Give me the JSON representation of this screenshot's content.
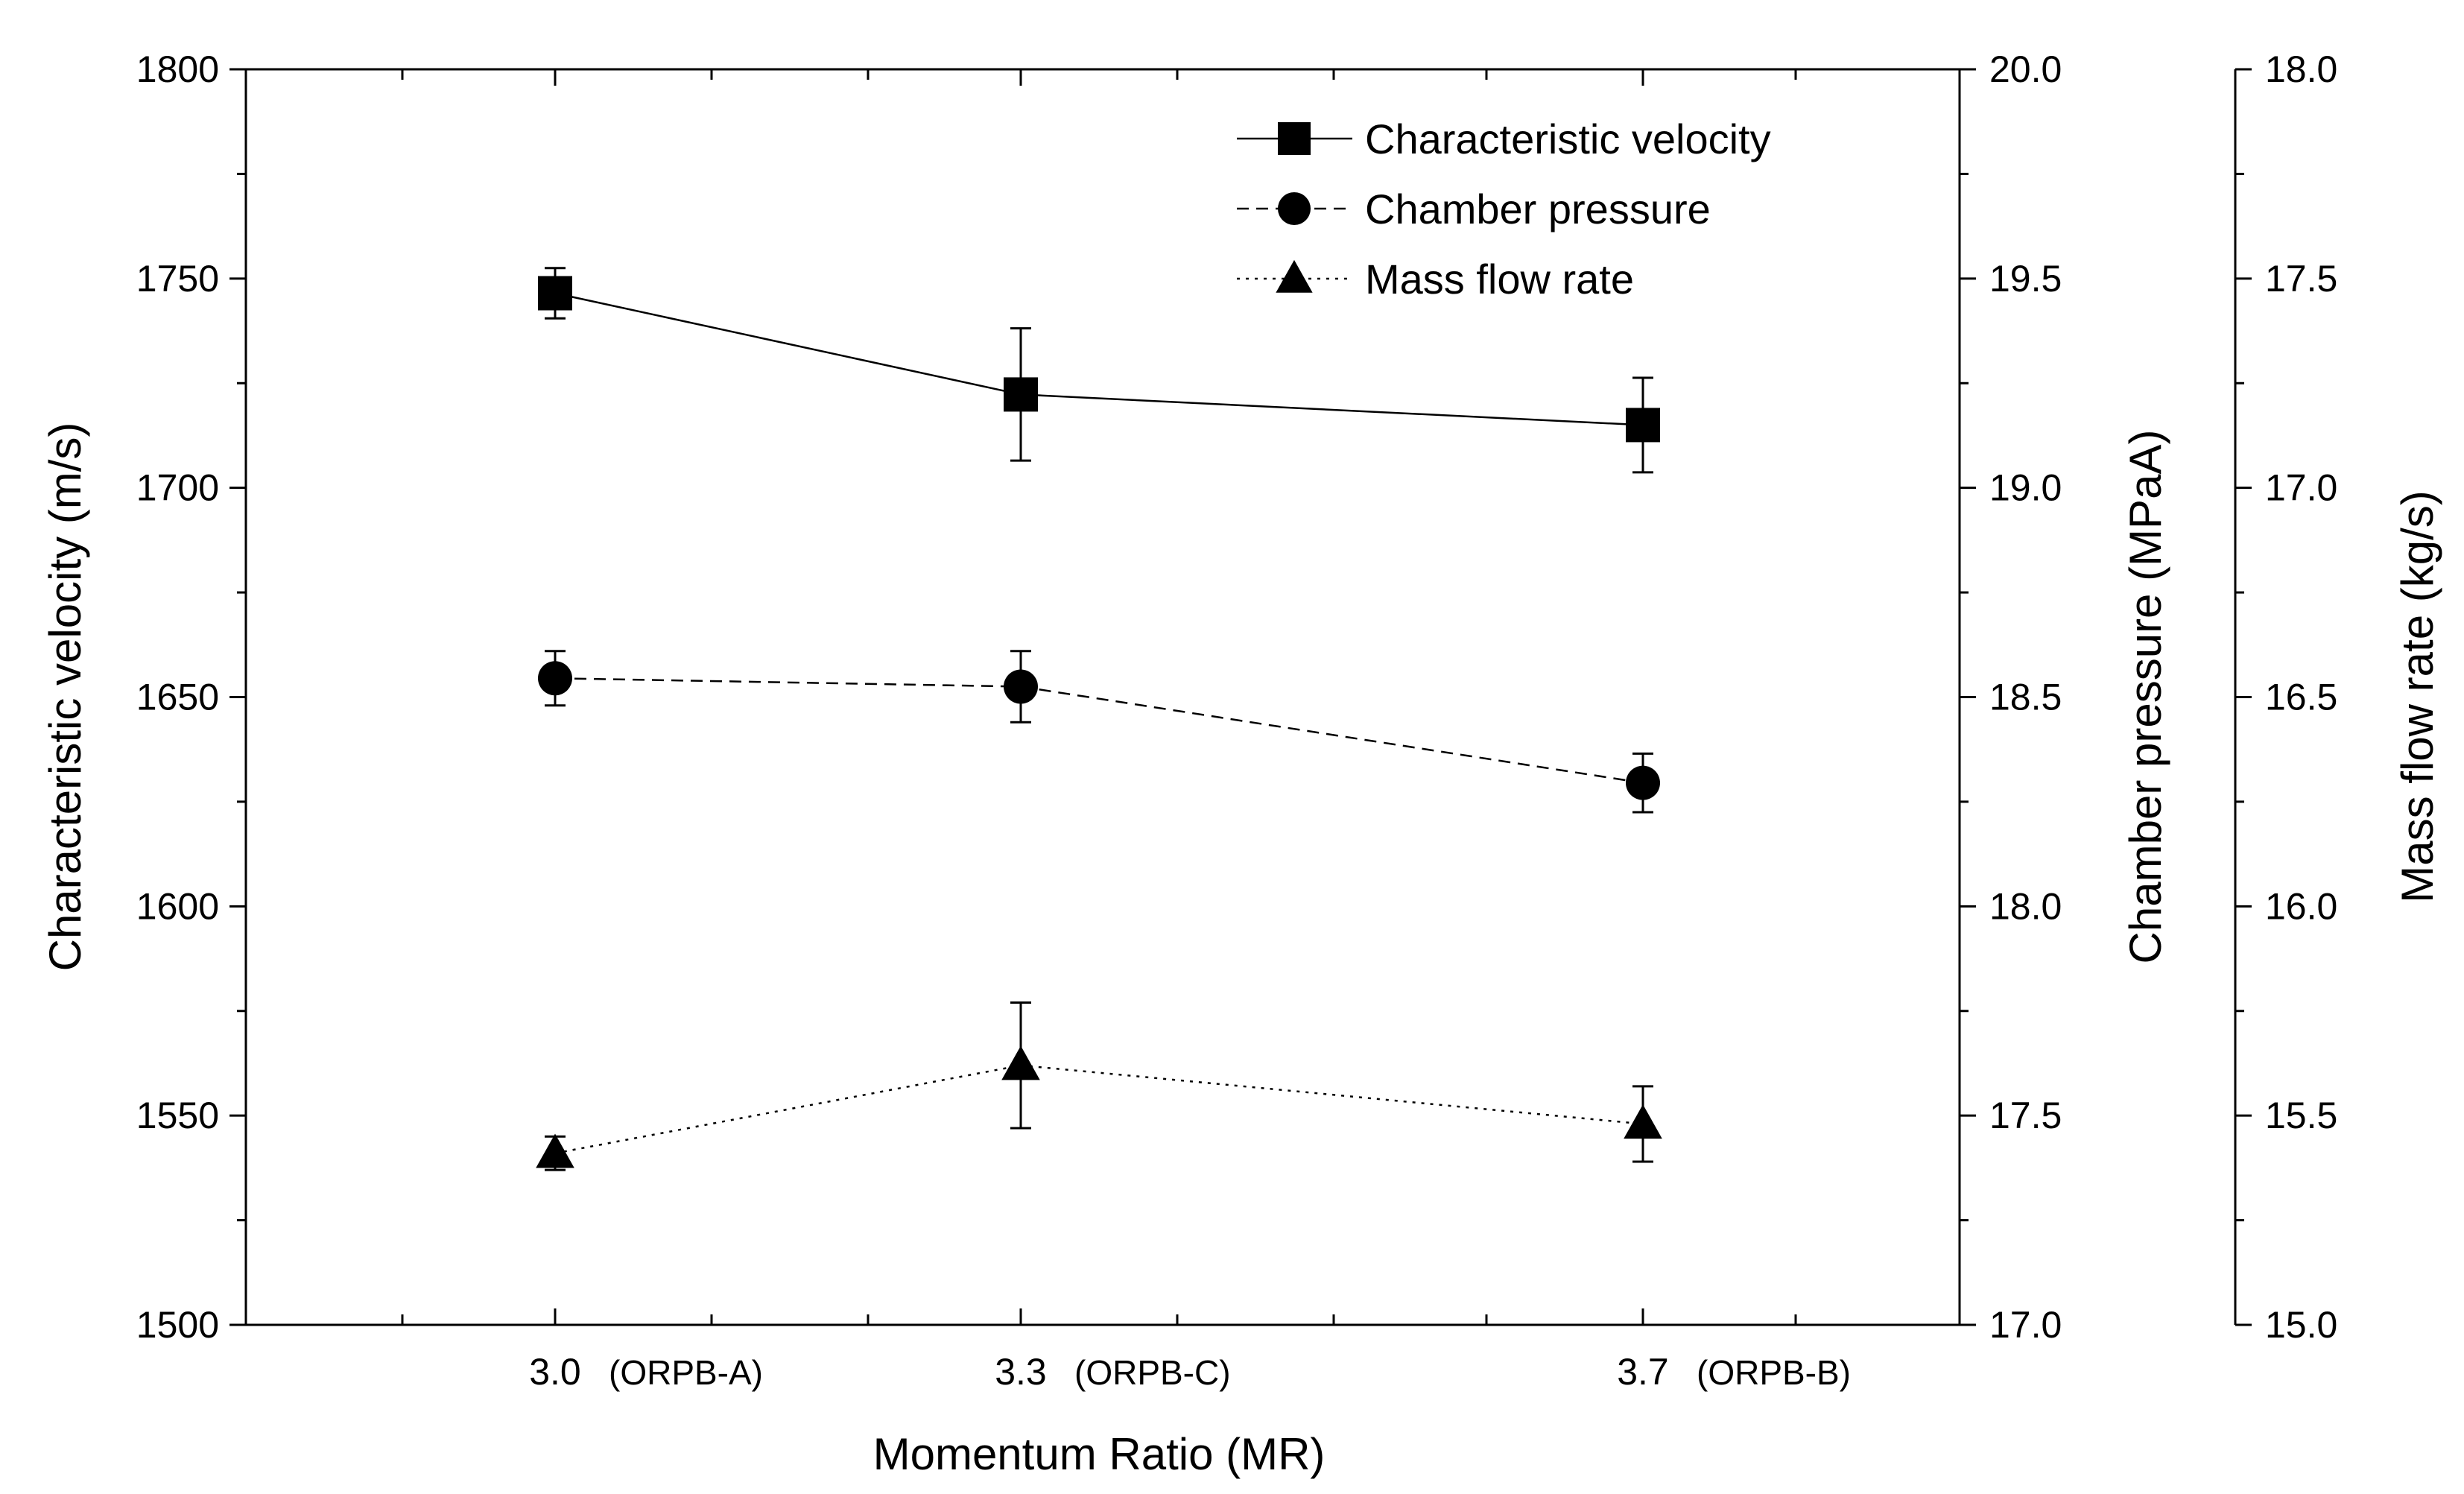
{
  "chart_data": {
    "type": "line",
    "xlabel": "Momentum Ratio (MR)",
    "categories": [
      {
        "value": "3.0",
        "label": "(ORPB-A)"
      },
      {
        "value": "3.3",
        "label": "(ORPB-C)"
      },
      {
        "value": "3.7",
        "label": "(ORPB-B)"
      }
    ],
    "axes": {
      "left": {
        "label": "Characteristic velocity (m/s)",
        "ylim": [
          1500,
          1800
        ],
        "ticks": [
          "1500",
          "1550",
          "1600",
          "1650",
          "1700",
          "1750",
          "1800"
        ]
      },
      "right1": {
        "label": "Chamber pressure (MPaA)",
        "ylim": [
          17.0,
          20.0
        ],
        "ticks": [
          "17.0",
          "17.5",
          "18.0",
          "18.5",
          "19.0",
          "19.5",
          "20.0"
        ]
      },
      "right2": {
        "label": "Mass flow rate (kg/s)",
        "ylim": [
          15.0,
          18.0
        ],
        "ticks": [
          "15.0",
          "15.5",
          "16.0",
          "16.5",
          "17.0",
          "17.5",
          "18.0"
        ]
      }
    },
    "series": [
      {
        "name": "Characteristic velocity",
        "axis": "left",
        "marker": "square",
        "line": "solid",
        "values": [
          1746.5,
          1722.3,
          1715.0
        ],
        "error": [
          6.0,
          15.8,
          11.3
        ]
      },
      {
        "name": "Chamber pressure",
        "axis": "right1",
        "marker": "circle",
        "line": "dashed",
        "values": [
          18.545,
          18.525,
          18.295
        ],
        "error": [
          0.065,
          0.085,
          0.07
        ]
      },
      {
        "name": "Mass flow rate",
        "axis": "right2",
        "marker": "triangle",
        "line": "dotted",
        "values": [
          15.41,
          15.62,
          15.48
        ],
        "error": [
          0.04,
          0.15,
          0.09
        ]
      }
    ],
    "legend": "top-right"
  }
}
